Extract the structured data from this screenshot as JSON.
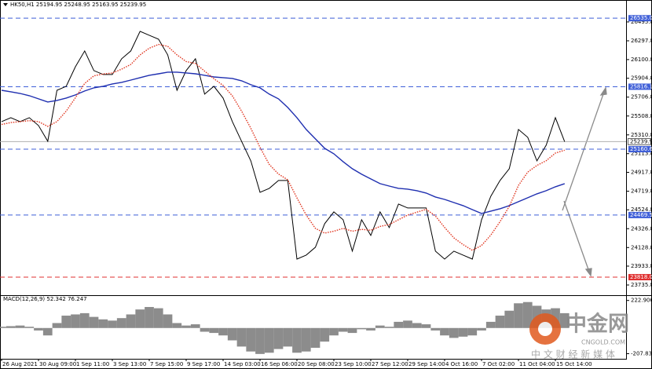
{
  "chart_data": [
    {
      "type": "line",
      "title": "HK50,H1 25194.95 25248.95 25163.95 25239.95",
      "categories": [
        "26 Aug 2021",
        null,
        null,
        null,
        "30 Aug 09:00",
        null,
        null,
        null,
        "1 Sep 11:00",
        null,
        null,
        null,
        "3 Sep 13:00",
        null,
        null,
        null,
        "7 Sep 15:00",
        null,
        null,
        null,
        "9 Sep 17:00",
        null,
        null,
        null,
        "14 Sep 03:00",
        null,
        null,
        null,
        "16 Sep 06:00",
        null,
        null,
        null,
        "20 Sep 08:00",
        null,
        null,
        null,
        "23 Sep 10:00",
        null,
        null,
        null,
        "27 Sep 12:00",
        null,
        null,
        null,
        "29 Sep 14:00",
        null,
        null,
        null,
        "4 Oct 16:00",
        null,
        null,
        null,
        "7 Oct 02:00",
        null,
        null,
        null,
        "11 Oct 04:00",
        null,
        null,
        null,
        "15 Oct 14:00",
        null
      ],
      "series": [
        {
          "color": "#000000",
          "style": "solid",
          "values": [
            25450,
            25491,
            25450,
            25491,
            25409,
            25244,
            25779,
            25821,
            26026,
            26191,
            25985,
            25944,
            25944,
            26109,
            26191,
            26397,
            26356,
            26315,
            26150,
            25779,
            25985,
            26109,
            25738,
            25821,
            25697,
            25450,
            25244,
            25038,
            24709,
            24750,
            24832,
            24832,
            24008,
            24050,
            24132,
            24379,
            24503,
            24420,
            24091,
            24420,
            24256,
            24503,
            24338,
            24585,
            24544,
            24544,
            24544,
            24091,
            24008,
            24091,
            24050,
            24008,
            24420,
            24667,
            24832,
            24956,
            25368,
            25285,
            25038,
            25203,
            25491,
            25240
          ]
        },
        {
          "color": "#1f2fb0",
          "style": "solid",
          "values": [
            25779,
            25763,
            25746,
            25722,
            25689,
            25656,
            25672,
            25697,
            25730,
            25771,
            25804,
            25821,
            25845,
            25862,
            25886,
            25911,
            25936,
            25952,
            25969,
            25969,
            25961,
            25952,
            25936,
            25919,
            25911,
            25903,
            25878,
            25837,
            25804,
            25738,
            25689,
            25598,
            25491,
            25368,
            25269,
            25170,
            25112,
            25030,
            24956,
            24898,
            24849,
            24799,
            24774,
            24750,
            24742,
            24725,
            24700,
            24659,
            24634,
            24601,
            24569,
            24527,
            24486,
            24511,
            24536,
            24569,
            24610,
            24651,
            24692,
            24725,
            24766,
            24799
          ]
        },
        {
          "color": "#e0341e",
          "style": "dotted",
          "values": [
            25420,
            25440,
            25450,
            25460,
            25450,
            25400,
            25450,
            25560,
            25700,
            25850,
            25930,
            25950,
            25960,
            26000,
            26050,
            26150,
            26220,
            26260,
            26240,
            26150,
            26080,
            26060,
            25980,
            25900,
            25830,
            25720,
            25560,
            25380,
            25180,
            25000,
            24900,
            24840,
            24650,
            24470,
            24330,
            24280,
            24300,
            24330,
            24300,
            24320,
            24310,
            24350,
            24370,
            24420,
            24470,
            24500,
            24530,
            24460,
            24340,
            24230,
            24160,
            24100,
            24150,
            24260,
            24400,
            24560,
            24780,
            24920,
            24990,
            25040,
            25120,
            25150
          ]
        }
      ],
      "ylim": [
        23637,
        26660
      ],
      "yticks": [
        {
          "value": 26495.8,
          "label": "26495.80"
        },
        {
          "value": 26297.8,
          "label": "26297.80"
        },
        {
          "value": 26100.8,
          "label": "26100.80"
        },
        {
          "value": 25904.8,
          "label": "25904.80"
        },
        {
          "value": 25706.8,
          "label": "25706.80"
        },
        {
          "value": 25508.8,
          "label": "25508.80"
        },
        {
          "value": 25310.8,
          "label": "25310.80"
        },
        {
          "value": 25113.8,
          "label": "25113.80"
        },
        {
          "value": 24917.8,
          "label": "24917.80"
        },
        {
          "value": 24719.8,
          "label": "24719.80"
        },
        {
          "value": 24524.8,
          "label": "24524.80"
        },
        {
          "value": 24326.8,
          "label": "24326.80"
        },
        {
          "value": 24128.8,
          "label": "24128.80"
        },
        {
          "value": 23933.8,
          "label": "23933.80"
        },
        {
          "value": 23735.8,
          "label": "23735.80"
        }
      ],
      "levels": [
        {
          "value": 26535,
          "label": "26535.00",
          "color": "#3f5fd8"
        },
        {
          "value": 25816.19,
          "label": "25816.19",
          "color": "#3f5fd8"
        },
        {
          "value": 25160.63,
          "label": "25160.63",
          "color": "#3f5fd8"
        },
        {
          "value": 24469.58,
          "label": "24469.58",
          "color": "#3f5fd8"
        },
        {
          "value": 23818,
          "label": "23818.00",
          "color": "#e03030"
        }
      ],
      "last": {
        "value": 25239.95,
        "label": "25239.95",
        "color": "#b0b0b0"
      }
    },
    {
      "type": "bar",
      "title": "MACD(12,26,9) 52.342 76.247",
      "color": "#8c8c8c",
      "values": [
        10,
        15,
        20,
        10,
        -20,
        -60,
        40,
        100,
        110,
        120,
        90,
        70,
        60,
        80,
        110,
        150,
        170,
        160,
        110,
        40,
        20,
        30,
        -30,
        -40,
        -60,
        -100,
        -150,
        -190,
        -210,
        -200,
        -170,
        -150,
        -200,
        -190,
        -160,
        -110,
        -60,
        -30,
        -40,
        -10,
        -20,
        20,
        10,
        50,
        60,
        40,
        30,
        -20,
        -60,
        -80,
        -70,
        -60,
        -20,
        50,
        100,
        140,
        200,
        210,
        180,
        150,
        160,
        120
      ],
      "ylim": [
        -230,
        240
      ],
      "yticks": [
        222.906,
        -207.835
      ]
    }
  ],
  "watermark": {
    "logo": "中金网",
    "site": "CNGOLD.COM",
    "slogan": "中 文 财 经 新 媒 体"
  }
}
